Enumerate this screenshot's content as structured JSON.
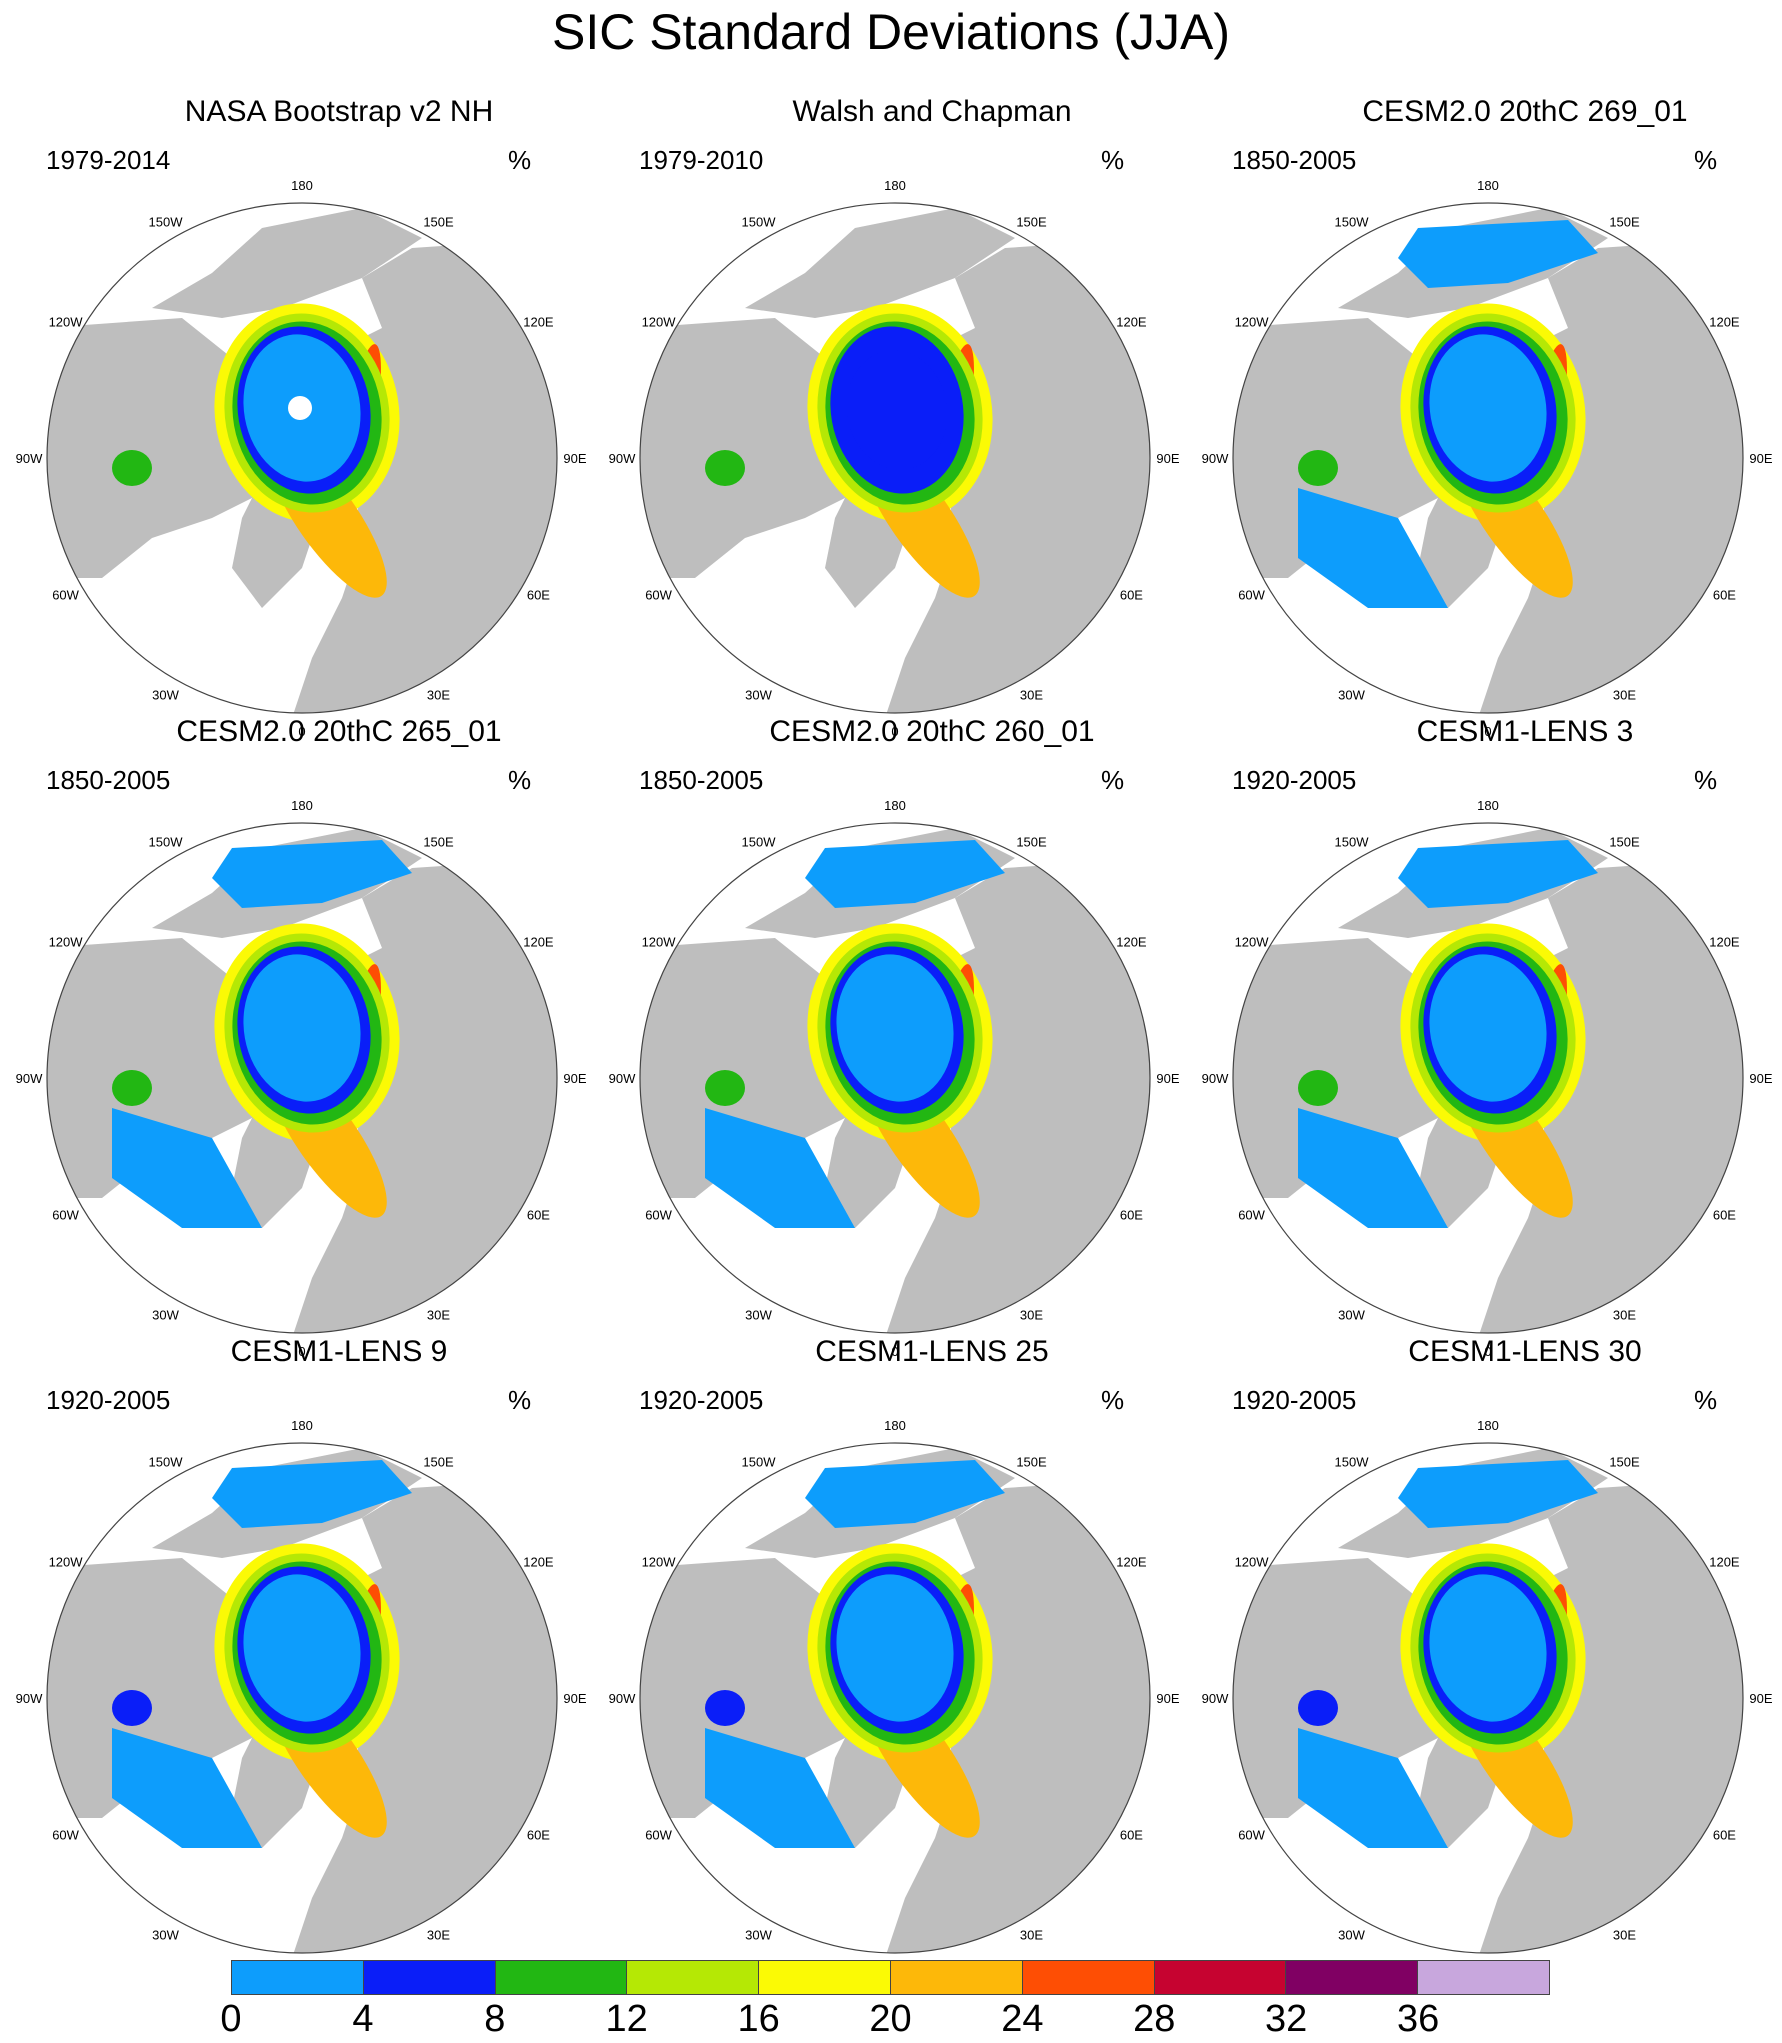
{
  "title": "SIC Standard Deviations (JJA)",
  "unit": "%",
  "longitude_labels": [
    "180",
    "150E",
    "120E",
    "90E",
    "60E",
    "30E",
    "0",
    "30W",
    "60W",
    "90W",
    "120W",
    "150W"
  ],
  "panels": [
    {
      "title": "NASA Bootstrap v2 NH",
      "period": "1979-2014"
    },
    {
      "title": "Walsh and Chapman",
      "period": "1979-2010"
    },
    {
      "title": "CESM2.0 20thC 269_01",
      "period": "1850-2005"
    },
    {
      "title": "CESM2.0 20thC 265_01",
      "period": "1850-2005"
    },
    {
      "title": "CESM2.0 20thC 260_01",
      "period": "1850-2005"
    },
    {
      "title": "CESM1-LENS 3",
      "period": "1920-2005"
    },
    {
      "title": "CESM1-LENS 9",
      "period": "1920-2005"
    },
    {
      "title": "CESM1-LENS 25",
      "period": "1920-2005"
    },
    {
      "title": "CESM1-LENS 30",
      "period": "1920-2005"
    }
  ],
  "colorbar": {
    "labels": [
      "0",
      "4",
      "8",
      "12",
      "16",
      "20",
      "24",
      "28",
      "32",
      "36"
    ],
    "colors": [
      "#0d9dfc",
      "#0a1ef8",
      "#22b713",
      "#b5e805",
      "#fbfa05",
      "#fdb809",
      "#fe4e04",
      "#c60330",
      "#800063",
      "#c8a7dd"
    ]
  },
  "colors": {
    "land": "#bebebe",
    "ocean": "#ffffff",
    "coast": "#444444"
  }
}
